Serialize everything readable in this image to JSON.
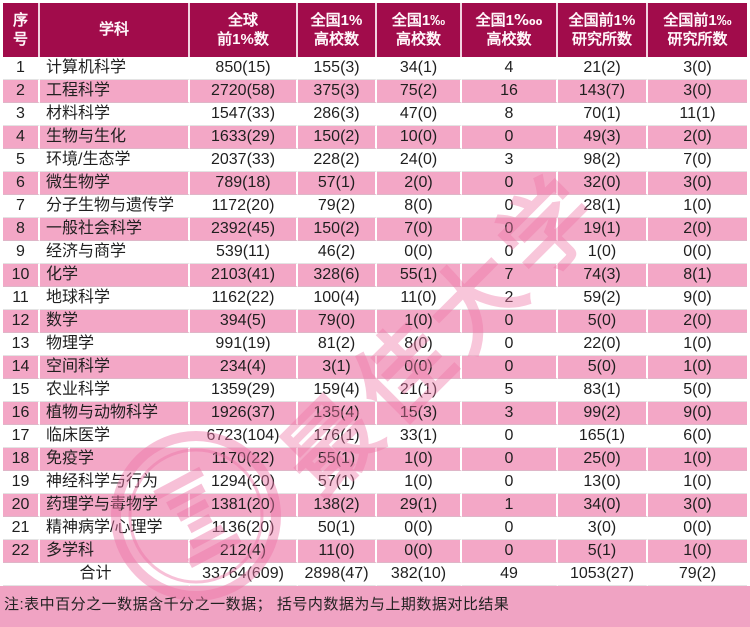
{
  "table": {
    "columns": [
      "序\n号",
      "学科",
      "全球\n前1%数",
      "全国1%\n高校数",
      "全国1‰\n高校数",
      "全国1‱\n高校数",
      "全国前1%\n研究所数",
      "全国前1‰\n研究所数"
    ],
    "rows": [
      [
        "1",
        "计算机科学",
        "850(15)",
        "155(3)",
        "34(1)",
        "4",
        "21(2)",
        "3(0)"
      ],
      [
        "2",
        "工程科学",
        "2720(58)",
        "375(3)",
        "75(2)",
        "16",
        "143(7)",
        "3(0)"
      ],
      [
        "3",
        "材料科学",
        "1547(33)",
        "286(3)",
        "47(0)",
        "8",
        "70(1)",
        "11(1)"
      ],
      [
        "4",
        "生物与生化",
        "1633(29)",
        "150(2)",
        "10(0)",
        "0",
        "49(3)",
        "2(0)"
      ],
      [
        "5",
        "环境/生态学",
        "2037(33)",
        "228(2)",
        "24(0)",
        "3",
        "98(2)",
        "7(0)"
      ],
      [
        "6",
        "微生物学",
        "789(18)",
        "57(1)",
        "2(0)",
        "0",
        "32(0)",
        "3(0)"
      ],
      [
        "7",
        "分子生物与遗传学",
        "1172(20)",
        "79(2)",
        "8(0)",
        "0",
        "28(1)",
        "1(0)"
      ],
      [
        "8",
        "一般社会科学",
        "2392(45)",
        "150(2)",
        "7(0)",
        "0",
        "19(1)",
        "2(0)"
      ],
      [
        "9",
        "经济与商学",
        "539(11)",
        "46(2)",
        "0(0)",
        "0",
        "1(0)",
        "0(0)"
      ],
      [
        "10",
        "化学",
        "2103(41)",
        "328(6)",
        "55(1)",
        "7",
        "74(3)",
        "8(1)"
      ],
      [
        "11",
        "地球科学",
        "1162(22)",
        "100(4)",
        "11(0)",
        "2",
        "59(2)",
        "9(0)"
      ],
      [
        "12",
        "数学",
        "394(5)",
        "79(0)",
        "1(0)",
        "0",
        "5(0)",
        "2(0)"
      ],
      [
        "13",
        "物理学",
        "991(19)",
        "81(2)",
        "8(0)",
        "0",
        "22(0)",
        "1(0)"
      ],
      [
        "14",
        "空间科学",
        "234(4)",
        "3(1)",
        "0(0)",
        "0",
        "5(0)",
        "1(0)"
      ],
      [
        "15",
        "农业科学",
        "1359(29)",
        "159(4)",
        "21(1)",
        "5",
        "83(1)",
        "5(0)"
      ],
      [
        "16",
        "植物与动物科学",
        "1926(37)",
        "135(4)",
        "15(3)",
        "3",
        "99(2)",
        "9(0)"
      ],
      [
        "17",
        "临床医学",
        "6723(104)",
        "176(1)",
        "33(1)",
        "0",
        "165(1)",
        "6(0)"
      ],
      [
        "18",
        "免疫学",
        "1170(22)",
        "55(1)",
        "1(0)",
        "0",
        "25(0)",
        "1(0)"
      ],
      [
        "19",
        "神经科学与行为",
        "1294(20)",
        "57(1)",
        "1(0)",
        "0",
        "13(0)",
        "1(0)"
      ],
      [
        "20",
        "药理学与毒物学",
        "1381(20)",
        "138(2)",
        "29(1)",
        "1",
        "34(0)",
        "3(0)"
      ],
      [
        "21",
        "精神病学/心理学",
        "1136(20)",
        "50(1)",
        "0(0)",
        "0",
        "3(0)",
        "0(0)"
      ],
      [
        "22",
        "多学科",
        "212(4)",
        "11(0)",
        "0(0)",
        "0",
        "5(1)",
        "1(0)"
      ]
    ],
    "total": [
      "合计",
      "33764(609)",
      "2898(47)",
      "382(10)",
      "49",
      "1053(27)",
      "79(2)"
    ]
  },
  "note": "注:表中百分之一数据含千分之一数据； 括号内数据为与上期数据对比结果",
  "watermark": {
    "text": "最佳大学",
    "seal": "university-seal"
  },
  "colors": {
    "header_bg": "#A10C4B",
    "stripe_pink": "#F3A7C6",
    "note_bg": "#F0A3C3",
    "watermark_pink": "#EE76A8"
  }
}
